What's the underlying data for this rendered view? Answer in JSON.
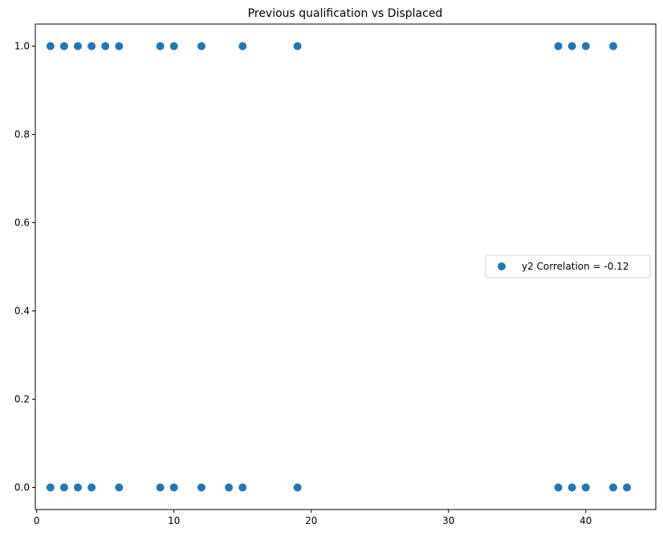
{
  "chart_data": {
    "type": "scatter",
    "title": "Previous qualification vs Displaced",
    "xlabel": "",
    "ylabel": "",
    "xlim": [
      -0.1,
      45.1
    ],
    "ylim": [
      -0.05,
      1.05
    ],
    "x_ticks": [
      0,
      10,
      20,
      30,
      40
    ],
    "x_tick_labels": [
      "0",
      "10",
      "20",
      "30",
      "40"
    ],
    "y_ticks": [
      0.0,
      0.2,
      0.4,
      0.6,
      0.8,
      1.0
    ],
    "y_tick_labels": [
      "0.0",
      "0.2",
      "0.4",
      "0.6",
      "0.8",
      "1.0"
    ],
    "grid": false,
    "legend_position": "center-right",
    "series": [
      {
        "name": "y2 Correlation = -0.12",
        "color": "#1f77b4",
        "points": [
          {
            "x": 1,
            "y": 1
          },
          {
            "x": 2,
            "y": 1
          },
          {
            "x": 3,
            "y": 1
          },
          {
            "x": 4,
            "y": 1
          },
          {
            "x": 5,
            "y": 1
          },
          {
            "x": 6,
            "y": 1
          },
          {
            "x": 9,
            "y": 1
          },
          {
            "x": 10,
            "y": 1
          },
          {
            "x": 12,
            "y": 1
          },
          {
            "x": 15,
            "y": 1
          },
          {
            "x": 19,
            "y": 1
          },
          {
            "x": 38,
            "y": 1
          },
          {
            "x": 39,
            "y": 1
          },
          {
            "x": 40,
            "y": 1
          },
          {
            "x": 42,
            "y": 1
          },
          {
            "x": 1,
            "y": 0
          },
          {
            "x": 2,
            "y": 0
          },
          {
            "x": 3,
            "y": 0
          },
          {
            "x": 4,
            "y": 0
          },
          {
            "x": 6,
            "y": 0
          },
          {
            "x": 9,
            "y": 0
          },
          {
            "x": 10,
            "y": 0
          },
          {
            "x": 12,
            "y": 0
          },
          {
            "x": 14,
            "y": 0
          },
          {
            "x": 15,
            "y": 0
          },
          {
            "x": 19,
            "y": 0
          },
          {
            "x": 38,
            "y": 0
          },
          {
            "x": 39,
            "y": 0
          },
          {
            "x": 40,
            "y": 0
          },
          {
            "x": 42,
            "y": 0
          },
          {
            "x": 43,
            "y": 0
          }
        ]
      }
    ]
  }
}
